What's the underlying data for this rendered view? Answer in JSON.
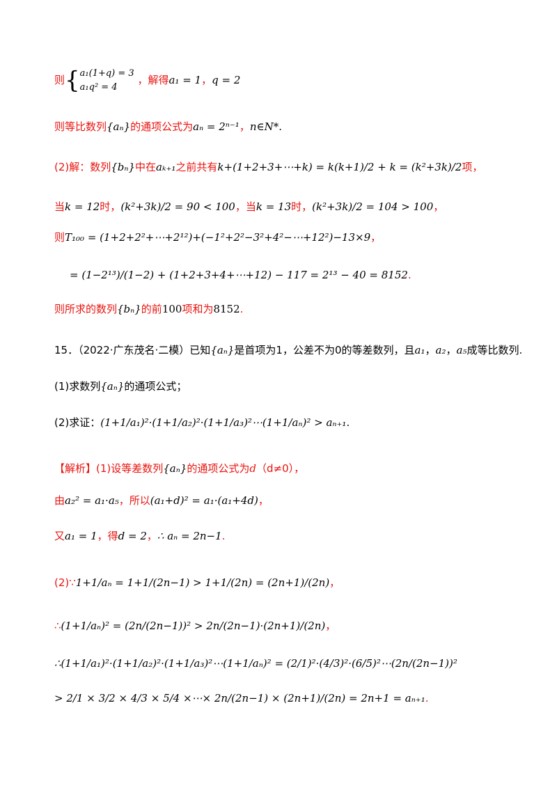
{
  "colors": {
    "solution_text": "#e8140f",
    "body_text": "#000000"
  },
  "q14_sol": {
    "l1_ze": "则",
    "l1_eq_a": "a₁(1+q) = 3",
    "l1_eq_b": "a₁q² = 4",
    "l1_mid": "，解得",
    "l1_a1": "a₁ = 1",
    "l1_comma": "，",
    "l1_q": "q = 2",
    "l2_pre": "则等比数列",
    "l2_seq": "{aₙ}",
    "l2_mid": "的通项公式为",
    "l2_formula": "aₙ = 2ⁿ⁻¹",
    "l2_comma": "，",
    "l2_domain": "n∈N*",
    "l2_end": ".",
    "l3_part": "(2)解：数列",
    "l3_seq": "{bₙ}",
    "l3_mid1": "中在",
    "l3_term": "aₖ₊₁",
    "l3_mid2": "之前共有",
    "l3_expr": "k+(1+2+3+⋯+k) = k(k+1)/2 + k = (k²+3k)/2",
    "l3_end": "项，",
    "l4_dang1": "当",
    "l4_k12": "k = 12",
    "l4_shi1": "时，",
    "l4_eq1": "(k²+3k)/2 = 90 < 100",
    "l4_dang2": "，当",
    "l4_k13": "k = 13",
    "l4_shi2": "时，",
    "l4_eq2": "(k²+3k)/2 = 104 > 100",
    "l4_end": "，",
    "l5_ze": "则",
    "l5_T": "T₁₀₀ = (1+2+2²+⋯+2¹²)+(−1²+2²−3²+4²−⋯+12²)−13×9",
    "l5_end": "，",
    "l6_expr": "= (1−2¹³)/(1−2) + (1+2+3+4+⋯+12) − 117 = 2¹³ − 40 = 8152",
    "l6_end": ".",
    "l7_pre": "则所求的数列",
    "l7_seq": "{bₙ}",
    "l7_mid": "的前",
    "l7_n": "100",
    "l7_mid2": "项和为",
    "l7_val": "8152",
    "l7_end": "."
  },
  "q15": {
    "head": "15．（2022·广东茂名·二模）已知",
    "seq": "{aₙ}",
    "text1": "是首项为1，公差不为0的等差数列，且",
    "a1": "a₁",
    "sep1": "，",
    "a2": "a₂",
    "sep2": "，",
    "a5": "a₅",
    "text2": "成等比数列.",
    "p1_label": "(1)求数列",
    "p1_seq": "{aₙ}",
    "p1_text": "的通项公式；",
    "p2_label": "(2)求证：",
    "p2_expr": "(1+1/a₁)²·(1+1/a₂)²·(1+1/a₃)²⋯(1+1/aₙ)² > aₙ₊₁",
    "p2_end": "."
  },
  "q15_sol": {
    "tag": "【解析】",
    "s1_pre": "(1)设等差数列",
    "s1_seq": "{aₙ}",
    "s1_mid": "的通项公式为",
    "s1_d": "d",
    "s1_cond": "（d≠0）",
    "s1_end": "，",
    "s2_you": "由",
    "s2_eq1": "a₂² = a₁·a₅",
    "s2_mid": "，所以",
    "s2_eq2": "(a₁+d)² = a₁·(a₁+4d)",
    "s2_end": "，",
    "s3_you": "又",
    "s3_a1": "a₁ = 1",
    "s3_de": "，得",
    "s3_d": "d = 2",
    "s3_comma": "，",
    "s3_an": "∴ aₙ = 2n−1",
    "s3_end": ".",
    "s4_label": "(2)∵",
    "s4_expr": "1+1/aₙ = 1+1/(2n−1) > 1+1/(2n) = (2n+1)/(2n)",
    "s4_end": "，",
    "s5_label": "∴",
    "s5_expr": "(1+1/aₙ)² = (2n/(2n−1))² > 2n/(2n−1)·(2n+1)/(2n)",
    "s5_end": "，",
    "s6_expr": "∴(1+1/a₁)²·(1+1/a₂)²·(1+1/a₃)²⋯(1+1/aₙ)² = (2/1)²·(4/3)²·(6/5)²⋯(2n/(2n−1))²",
    "s7_expr": "> 2/1 × 3/2 × 4/3 × 5/4 ×⋯× 2n/(2n−1) × (2n+1)/(2n) = 2n+1 = aₙ₊₁",
    "s7_end": "."
  }
}
